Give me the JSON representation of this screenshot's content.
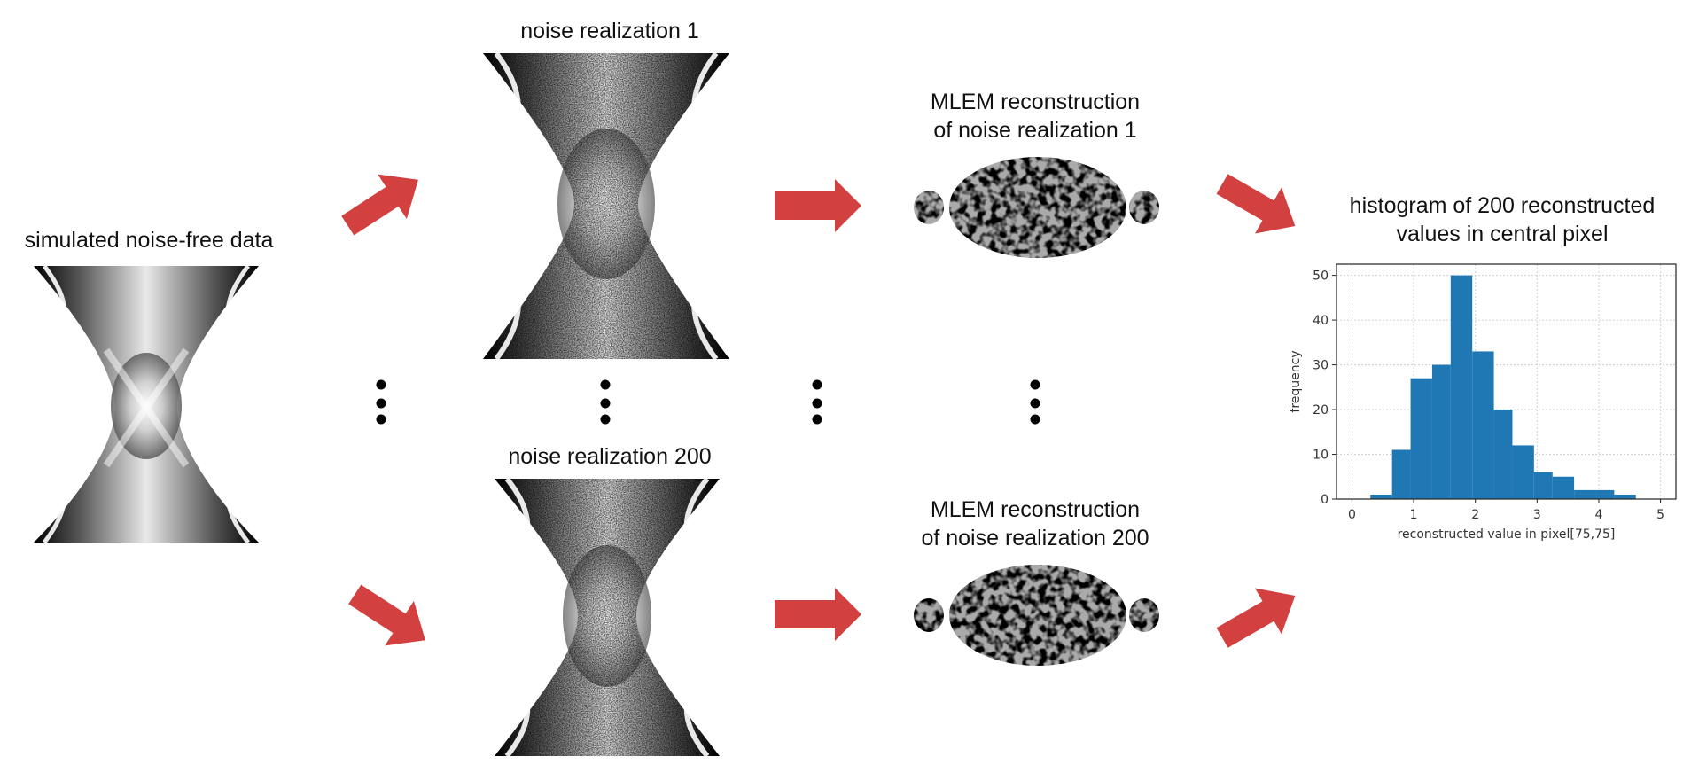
{
  "labels": {
    "noise_free": "simulated noise-free data",
    "noise_1": "noise realization 1",
    "noise_200": "noise realization 200",
    "recon_1_line1": "MLEM reconstruction",
    "recon_1_line2": "of noise realization 1",
    "recon_200_line1": "MLEM reconstruction",
    "recon_200_line2": "of noise realization 200",
    "hist_title_line1": "histogram of 200 reconstructed",
    "hist_title_line2": "values in central pixel"
  },
  "colors": {
    "arrow": "#d24040",
    "bar": "#1f77b4",
    "grid": "#d0d0d0",
    "text": "#111111"
  },
  "chart_data": {
    "type": "bar",
    "title": "histogram of 200 reconstructed values in central pixel",
    "xlabel": "reconstructed value in pixel[75,75]",
    "ylabel": "frequency",
    "xlim": [
      -0.25,
      5.25
    ],
    "ylim": [
      0,
      52.5
    ],
    "xticks": [
      0,
      1,
      2,
      3,
      4,
      5
    ],
    "yticks": [
      0,
      10,
      20,
      30,
      40,
      50
    ],
    "grid": true,
    "bin_edges": [
      0.3,
      0.65,
      0.95,
      1.3,
      1.6,
      1.95,
      2.3,
      2.6,
      2.95,
      3.25,
      3.6,
      3.95,
      4.25,
      4.6
    ],
    "counts": [
      1,
      11,
      27,
      30,
      50,
      33,
      20,
      12,
      6,
      5,
      2,
      2,
      1
    ]
  }
}
